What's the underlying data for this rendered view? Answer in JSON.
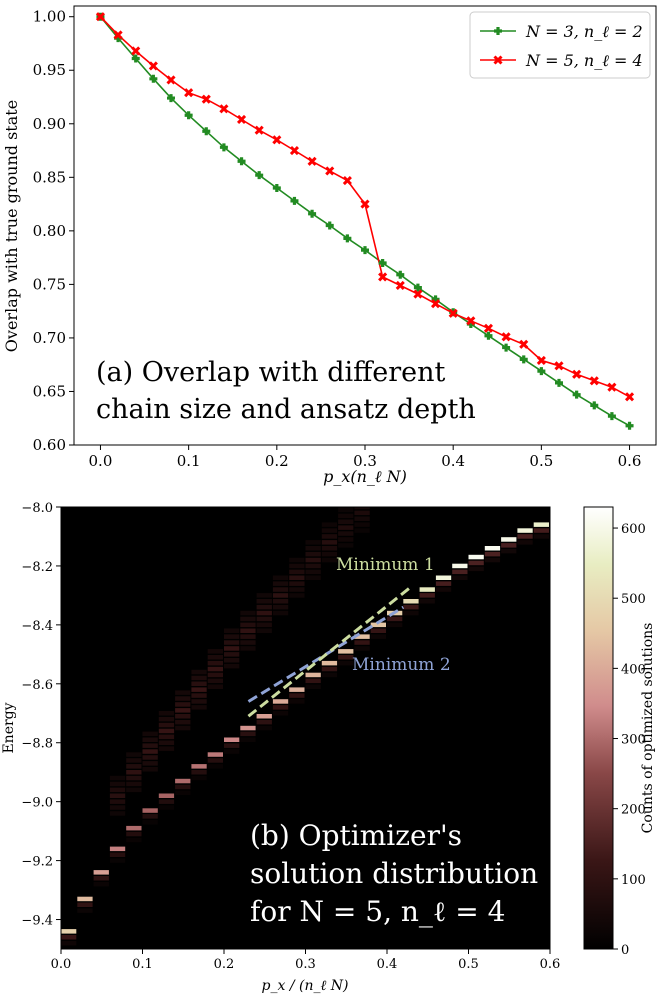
{
  "chart_data": [
    {
      "panel": "(a)",
      "type": "line",
      "xlabel": "p_x(n_ℓ N)",
      "ylabel": "Overlap with true ground state",
      "xlim": [
        -0.03,
        0.63
      ],
      "ylim": [
        0.6,
        1.01
      ],
      "xticks": [
        "0.0",
        "0.1",
        "0.2",
        "0.3",
        "0.4",
        "0.5",
        "0.6"
      ],
      "yticks": [
        "0.60",
        "0.65",
        "0.70",
        "0.75",
        "0.80",
        "0.85",
        "0.90",
        "0.95",
        "1.00"
      ],
      "legend_position": "top-right",
      "annotation": [
        "(a) Overlap with different",
        "chain size and ansatz depth"
      ],
      "series": [
        {
          "name": "N = 3, n_ℓ = 2",
          "color": "#228b22",
          "marker": "plus",
          "x": [
            0.0,
            0.02,
            0.04,
            0.06,
            0.08,
            0.1,
            0.12,
            0.14,
            0.16,
            0.18,
            0.2,
            0.22,
            0.24,
            0.26,
            0.28,
            0.3,
            0.32,
            0.34,
            0.36,
            0.38,
            0.4,
            0.42,
            0.44,
            0.46,
            0.48,
            0.5,
            0.52,
            0.54,
            0.56,
            0.58,
            0.6
          ],
          "values": [
            1.0,
            0.98,
            0.961,
            0.942,
            0.924,
            0.908,
            0.893,
            0.878,
            0.865,
            0.852,
            0.84,
            0.828,
            0.816,
            0.805,
            0.793,
            0.782,
            0.77,
            0.759,
            0.747,
            0.736,
            0.724,
            0.713,
            0.702,
            0.691,
            0.68,
            0.669,
            0.658,
            0.647,
            0.637,
            0.627,
            0.618
          ]
        },
        {
          "name": "N = 5, n_ℓ = 4",
          "color": "#ff0000",
          "marker": "x",
          "x": [
            0.0,
            0.02,
            0.04,
            0.06,
            0.08,
            0.1,
            0.12,
            0.14,
            0.16,
            0.18,
            0.2,
            0.22,
            0.24,
            0.26,
            0.28,
            0.3,
            0.32,
            0.34,
            0.36,
            0.38,
            0.4,
            0.42,
            0.44,
            0.46,
            0.48,
            0.5,
            0.52,
            0.54,
            0.56,
            0.58,
            0.6
          ],
          "values": [
            1.0,
            0.983,
            0.968,
            0.954,
            0.941,
            0.929,
            0.923,
            0.914,
            0.904,
            0.894,
            0.885,
            0.875,
            0.865,
            0.856,
            0.847,
            0.825,
            0.757,
            0.749,
            0.741,
            0.732,
            0.723,
            0.716,
            0.709,
            0.701,
            0.694,
            0.679,
            0.674,
            0.666,
            0.66,
            0.654,
            0.645
          ]
        }
      ]
    },
    {
      "panel": "(b)",
      "type": "heatmap",
      "xlabel": "p_x / (n_ℓ N)",
      "ylabel": "Energy",
      "xlim": [
        0.0,
        0.6
      ],
      "ylim": [
        -9.5,
        -8.0
      ],
      "xticks": [
        "0.0",
        "0.1",
        "0.2",
        "0.3",
        "0.4",
        "0.5",
        "0.6"
      ],
      "yticks": [
        "−8.0",
        "−8.2",
        "−8.4",
        "−8.6",
        "−8.8",
        "−9.0",
        "−9.2",
        "−9.4"
      ],
      "colorbar": {
        "label": "Counts of optimized solutions",
        "range": [
          0,
          630
        ],
        "ticks": [
          "0",
          "100",
          "200",
          "300",
          "400",
          "500",
          "600"
        ]
      },
      "annotations": [
        "Minimum 1",
        "Minimum 2"
      ],
      "annotation_colors": {
        "Minimum 1": "#ccdda0",
        "Minimum 2": "#8fa3d6"
      },
      "caption_lines": [
        "(b) Optimizer's",
        "solution distribution",
        "for N = 5, n_ℓ = 4"
      ],
      "bin_width": 0.02,
      "ground_branch": {
        "x": [
          0.01,
          0.03,
          0.05,
          0.07,
          0.09,
          0.11,
          0.13,
          0.15,
          0.17,
          0.19,
          0.21,
          0.23,
          0.25,
          0.27,
          0.29,
          0.31,
          0.33,
          0.35,
          0.37,
          0.39,
          0.41,
          0.43,
          0.45,
          0.47,
          0.49,
          0.51,
          0.53,
          0.55,
          0.57,
          0.59
        ],
        "energy": [
          -9.44,
          -9.33,
          -9.24,
          -9.16,
          -9.09,
          -9.03,
          -8.98,
          -8.93,
          -8.88,
          -8.84,
          -8.79,
          -8.75,
          -8.71,
          -8.66,
          -8.62,
          -8.57,
          -8.53,
          -8.49,
          -8.44,
          -8.4,
          -8.36,
          -8.32,
          -8.28,
          -8.24,
          -8.2,
          -8.17,
          -8.14,
          -8.11,
          -8.08,
          -8.06
        ],
        "counts": [
          480,
          430,
          380,
          330,
          300,
          290,
          290,
          300,
          310,
          320,
          340,
          360,
          380,
          400,
          410,
          420,
          430,
          440,
          440,
          450,
          470,
          500,
          540,
          580,
          600,
          610,
          610,
          600,
          580,
          560
        ]
      },
      "upper_branch": {
        "x": [
          0.07,
          0.09,
          0.11,
          0.13,
          0.15,
          0.17,
          0.19,
          0.21,
          0.23,
          0.25,
          0.27,
          0.29,
          0.31,
          0.33,
          0.35,
          0.37
        ],
        "energy": [
          -8.98,
          -8.9,
          -8.83,
          -8.76,
          -8.69,
          -8.62,
          -8.55,
          -8.48,
          -8.42,
          -8.36,
          -8.3,
          -8.24,
          -8.18,
          -8.12,
          -8.07,
          -8.02
        ],
        "counts": [
          90,
          100,
          110,
          115,
          120,
          120,
          115,
          110,
          105,
          100,
          95,
          90,
          85,
          80,
          70,
          60
        ]
      },
      "minimum_1_line": {
        "x": [
          0.23,
          0.43
        ],
        "energy": [
          -8.71,
          -8.27
        ]
      },
      "minimum_2_line": {
        "x": [
          0.23,
          0.42
        ],
        "energy": [
          -8.66,
          -8.34
        ]
      }
    }
  ]
}
